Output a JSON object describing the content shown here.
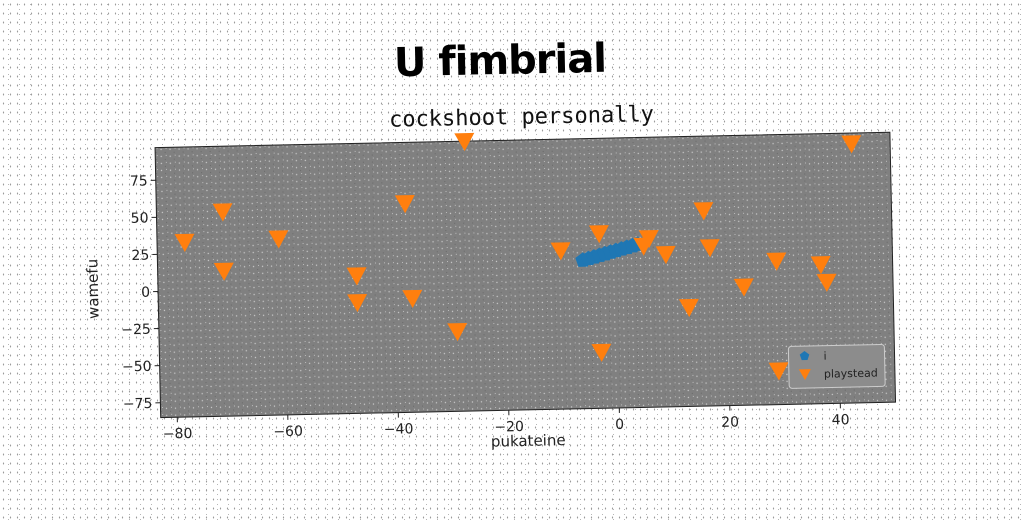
{
  "suptitle": "U fimbrial",
  "chart_data": {
    "type": "scatter",
    "title": "cockshoot personally",
    "xlabel": "pukateine",
    "ylabel": "wamefu",
    "xlim": [
      -83,
      50
    ],
    "ylim": [
      -85,
      97
    ],
    "xticks": [
      -80,
      -60,
      -40,
      -20,
      0,
      20,
      40
    ],
    "yticks": [
      -75,
      -50,
      -25,
      0,
      25,
      50,
      75
    ],
    "grid": false,
    "legend_position": "lower-right",
    "background": "#808080",
    "series": [
      {
        "name": "i",
        "marker": "pentagon",
        "color": "#1f77b4",
        "points": [
          [
            -6,
            15
          ],
          [
            -5,
            16
          ],
          [
            -4,
            17
          ],
          [
            -3,
            18
          ],
          [
            -2,
            19
          ],
          [
            -1,
            20
          ],
          [
            0,
            21
          ],
          [
            1,
            22
          ],
          [
            2,
            23
          ],
          [
            3,
            24
          ],
          [
            4,
            25
          ]
        ]
      },
      {
        "name": "playstead",
        "marker": "triangle-down",
        "color": "#ff7f0e",
        "points": [
          [
            -78,
            33
          ],
          [
            -71,
            53
          ],
          [
            -71,
            13
          ],
          [
            -61,
            34
          ],
          [
            -47,
            8
          ],
          [
            -47,
            -10
          ],
          [
            -38,
            56
          ],
          [
            -37,
            -8
          ],
          [
            -29,
            -31
          ],
          [
            -27,
            97
          ],
          [
            -10,
            22
          ],
          [
            -3,
            33
          ],
          [
            -3,
            -47
          ],
          [
            5,
            24
          ],
          [
            6,
            29
          ],
          [
            9,
            18
          ],
          [
            13,
            -18
          ],
          [
            16,
            47
          ],
          [
            17,
            22
          ],
          [
            23,
            -5
          ],
          [
            29,
            12
          ],
          [
            29,
            -62
          ],
          [
            37,
            9
          ],
          [
            38,
            -3
          ],
          [
            43,
            90
          ]
        ]
      }
    ]
  }
}
